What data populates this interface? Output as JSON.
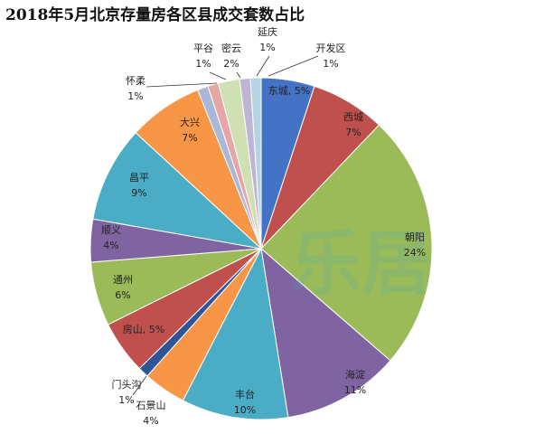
{
  "chart_data": {
    "type": "pie",
    "title": "2018年5月北京存量房各区县成交套数占比",
    "categories": [
      "东城",
      "西城",
      "朝阳",
      "海淀",
      "丰台",
      "石景山",
      "门头沟",
      "房山",
      "通州",
      "顺义",
      "昌平",
      "大兴",
      "怀柔",
      "平谷",
      "密云",
      "延庆",
      "开发区"
    ],
    "values": [
      5,
      7,
      24,
      11,
      10,
      4,
      1,
      5,
      6,
      4,
      9,
      7,
      1,
      1,
      2,
      1,
      1
    ],
    "series": [
      {
        "values": [
          5,
          7,
          24,
          11,
          10,
          4,
          1,
          5,
          6,
          4,
          9,
          7,
          1,
          1,
          2,
          1,
          1
        ]
      }
    ],
    "slice_colors": [
      "#4472c4",
      "#c0504d",
      "#9bbb59",
      "#8064a2",
      "#4bacc6",
      "#f79646",
      "#2f5597",
      "#c0504d",
      "#9bbb59",
      "#8064a2",
      "#4bacc6",
      "#f79646",
      "#a9b7d9",
      "#e6a6a6",
      "#cfe0b3",
      "#c0b4d6",
      "#b4d4e3"
    ],
    "legend": "none",
    "data_labels": [
      {
        "name": "东城",
        "pct": "5%",
        "style": "inline"
      },
      {
        "name": "西城",
        "pct": "7%",
        "style": "stacked"
      },
      {
        "name": "朝阳",
        "pct": "24%",
        "style": "stacked"
      },
      {
        "name": "海淀",
        "pct": "11%",
        "style": "stacked"
      },
      {
        "name": "丰台",
        "pct": "10%",
        "style": "stacked"
      },
      {
        "name": "石景山",
        "pct": "4%",
        "style": "stacked"
      },
      {
        "name": "门头沟",
        "pct": "1%",
        "style": "stacked"
      },
      {
        "name": "房山",
        "pct": "5%",
        "style": "inline"
      },
      {
        "name": "通州",
        "pct": "6%",
        "style": "stacked"
      },
      {
        "name": "顺义",
        "pct": "4%",
        "style": "stacked"
      },
      {
        "name": "昌平",
        "pct": "9%",
        "style": "stacked"
      },
      {
        "name": "大兴",
        "pct": "7%",
        "style": "stacked"
      },
      {
        "name": "怀柔",
        "pct": "1%",
        "style": "stacked"
      },
      {
        "name": "平谷",
        "pct": "1%",
        "style": "stacked"
      },
      {
        "name": "密云",
        "pct": "2%",
        "style": "stacked"
      },
      {
        "name": "延庆",
        "pct": "1%",
        "style": "stacked"
      },
      {
        "name": "开发区",
        "pct": "1%",
        "style": "stacked"
      }
    ]
  },
  "watermark": "乐居"
}
